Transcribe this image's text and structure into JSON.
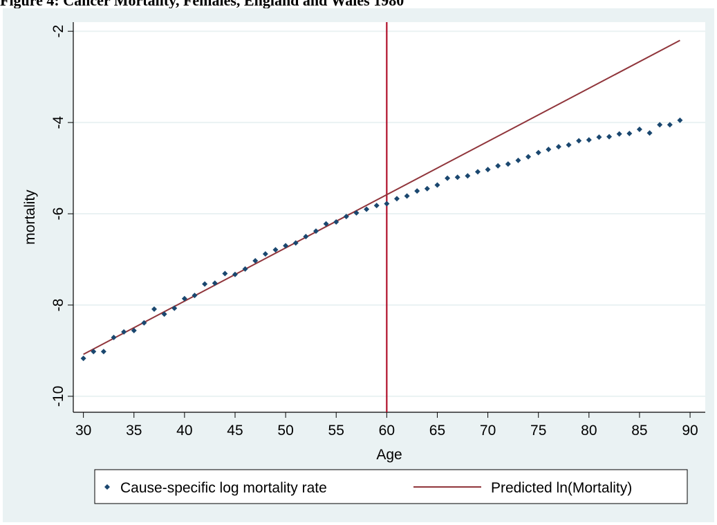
{
  "figure_title": "Figure 4: Cancer Mortality, Females, England and Wales 1980",
  "chart_data": {
    "type": "scatter",
    "xlabel": "Age",
    "ylabel": "mortality",
    "xlim": [
      29,
      91.5
    ],
    "ylim": [
      -10.35,
      -1.8
    ],
    "x_ticks": [
      30,
      35,
      40,
      45,
      50,
      55,
      60,
      65,
      70,
      75,
      80,
      85,
      90
    ],
    "y_ticks": [
      -10,
      -8,
      -6,
      -4,
      -2
    ],
    "grid": "horizontal",
    "vertical_line": {
      "x": 60,
      "color": "#b0102a"
    },
    "legend_position": "bottom",
    "colors": {
      "scatter": "#1a476f",
      "line": "#90353b",
      "background": "#eaf2f3"
    },
    "series": [
      {
        "name": "Cause-specific log mortality rate",
        "kind": "scatter",
        "x": [
          30,
          31,
          32,
          33,
          34,
          35,
          36,
          37,
          38,
          39,
          40,
          41,
          42,
          43,
          44,
          45,
          46,
          47,
          48,
          49,
          50,
          51,
          52,
          53,
          54,
          55,
          56,
          57,
          58,
          59,
          60,
          61,
          62,
          63,
          64,
          65,
          66,
          67,
          68,
          69,
          70,
          71,
          72,
          73,
          74,
          75,
          76,
          77,
          78,
          79,
          80,
          81,
          82,
          83,
          84,
          85,
          86,
          87,
          88,
          89
        ],
        "y": [
          -9.17,
          -9.02,
          -9.02,
          -8.71,
          -8.59,
          -8.56,
          -8.39,
          -8.09,
          -8.2,
          -8.07,
          -7.86,
          -7.79,
          -7.54,
          -7.52,
          -7.31,
          -7.33,
          -7.21,
          -7.03,
          -6.88,
          -6.79,
          -6.7,
          -6.64,
          -6.5,
          -6.38,
          -6.22,
          -6.18,
          -6.06,
          -5.98,
          -5.9,
          -5.82,
          -5.78,
          -5.67,
          -5.61,
          -5.5,
          -5.45,
          -5.37,
          -5.22,
          -5.2,
          -5.17,
          -5.08,
          -5.03,
          -4.95,
          -4.91,
          -4.83,
          -4.75,
          -4.66,
          -4.59,
          -4.53,
          -4.49,
          -4.4,
          -4.38,
          -4.32,
          -4.31,
          -4.25,
          -4.24,
          -4.15,
          -4.23,
          -4.05,
          -4.05,
          -3.95
        ]
      },
      {
        "name": "Predicted ln(Mortality)",
        "kind": "line",
        "x": [
          30,
          89
        ],
        "y": [
          -9.08,
          -2.2
        ]
      }
    ]
  }
}
